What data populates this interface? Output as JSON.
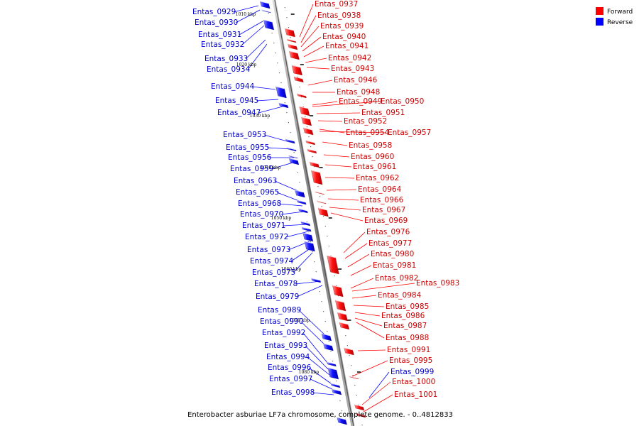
{
  "caption": "Enterobacter asburiae LF7a chromosome, complete genome. - 0..4812833",
  "legend": [
    {
      "label": "Forward",
      "color": "#ff0000"
    },
    {
      "label": "Reverse",
      "color": "#0000ff"
    }
  ],
  "colors": {
    "forward": "#ff0000",
    "reverse": "#0000ff",
    "backbone": "#888888"
  },
  "ticks": [
    "1010 kbp",
    "1020 kbp",
    "1030 kbp",
    "1040 kbp",
    "1050 kbp",
    "1060 kbp",
    "1070 kbp",
    "1080 kbp"
  ],
  "forward_genes": [
    "Entas_0937",
    "Entas_0938",
    "Entas_0939",
    "Entas_0940",
    "Entas_0941",
    "Entas_0942",
    "Entas_0943",
    "Entas_0946",
    "Entas_0948",
    "Entas_0949",
    "Entas_0950",
    "Entas_0951",
    "Entas_0952",
    "Entas_0954",
    "Entas_0957",
    "Entas_0958",
    "Entas_0960",
    "Entas_0961",
    "Entas_0962",
    "Entas_0964",
    "Entas_0966",
    "Entas_0967",
    "Entas_0969",
    "Entas_0976",
    "Entas_0977",
    "Entas_0980",
    "Entas_0981",
    "Entas_0982",
    "Entas_0983",
    "Entas_0984",
    "Entas_0985",
    "Entas_0986",
    "Entas_0987",
    "Entas_0988",
    "Entas_0991",
    "Entas_0995",
    "Entas_1000",
    "Entas_1001"
  ],
  "reverse_genes": [
    "Entas_0929",
    "Entas_0930",
    "Entas_0931",
    "Entas_0932",
    "Entas_0933",
    "Entas_0934",
    "Entas_0944",
    "Entas_0945",
    "Entas_0947",
    "Entas_0953",
    "Entas_0955",
    "Entas_0956",
    "Entas_0959",
    "Entas_0963",
    "Entas_0965",
    "Entas_0968",
    "Entas_0970",
    "Entas_0971",
    "Entas_0972",
    "Entas_0973",
    "Entas_0974",
    "Entas_0975",
    "Entas_0978",
    "Entas_0979",
    "Entas_0989",
    "Entas_0990",
    "Entas_0992",
    "Entas_0993",
    "Entas_0994",
    "Entas_0996",
    "Entas_0997",
    "Entas_0998",
    "Entas_0999"
  ]
}
